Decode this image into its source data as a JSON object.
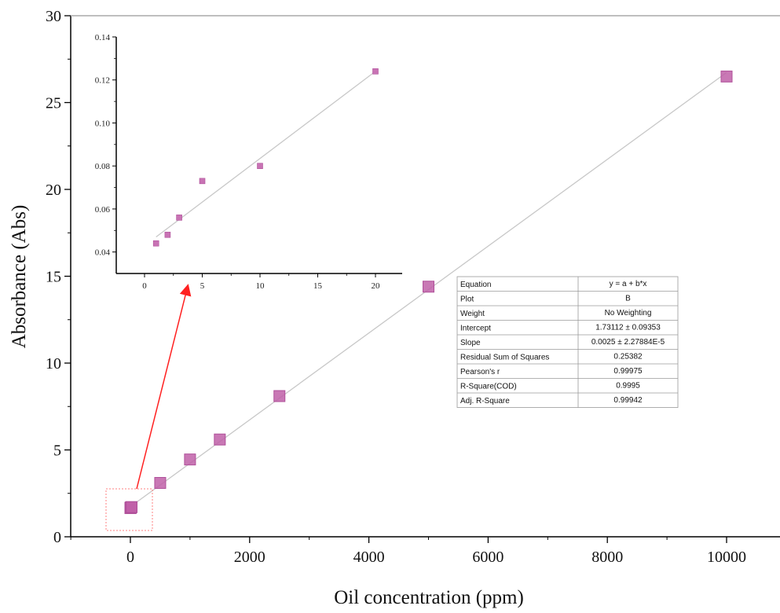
{
  "chart_data": [
    {
      "type": "scatter",
      "xlabel": "Oil concentration (ppm)",
      "ylabel": "Absorbance (Abs)",
      "xlim": [
        -1000,
        11000
      ],
      "ylim": [
        0,
        30
      ],
      "xticks": [
        0,
        2000,
        4000,
        6000,
        8000,
        10000
      ],
      "yticks": [
        0,
        5,
        10,
        15,
        20,
        25,
        30
      ],
      "series": [
        {
          "x": [
            1,
            2,
            3,
            5,
            10,
            20,
            500,
            1000,
            1500,
            2500,
            5000,
            10000
          ],
          "y": [
            1.65,
            1.66,
            1.67,
            1.68,
            1.69,
            1.71,
            3.1,
            4.45,
            5.6,
            8.1,
            14.4,
            26.5
          ]
        }
      ],
      "fit_line": {
        "x": [
          0,
          10000
        ],
        "y": [
          1.73112,
          26.73112
        ]
      },
      "fit_table": [
        [
          "Equation",
          "y = a + b*x"
        ],
        [
          "Plot",
          "B"
        ],
        [
          "Weight",
          "No Weighting"
        ],
        [
          "Intercept",
          "1.73112 ± 0.09353"
        ],
        [
          "Slope",
          "0.0025 ± 2.27884E-5"
        ],
        [
          "Residual Sum of Squares",
          "0.25382"
        ],
        [
          "Pearson's r",
          "0.99975"
        ],
        [
          "R-Square(COD)",
          "0.9995"
        ],
        [
          "Adj. R-Square",
          "0.99942"
        ]
      ],
      "colors": {
        "marker": "#c060a8",
        "fit_line": "#c8c8c8",
        "arrow": "#ff2020",
        "highlight_box": "#ff8080"
      }
    },
    {
      "type": "scatter",
      "role": "inset",
      "xlim": [
        -2.5,
        22.5
      ],
      "ylim": [
        0.03,
        0.14
      ],
      "xticks": [
        0,
        5,
        10,
        15,
        20
      ],
      "yticks": [
        0.04,
        0.06,
        0.08,
        0.1,
        0.12,
        0.14
      ],
      "ytick_labels": [
        "0.04",
        "0.06",
        "0.08",
        "0.10",
        "0.12",
        "0.14"
      ],
      "series": [
        {
          "x": [
            1,
            2,
            3,
            5,
            10,
            20
          ],
          "y": [
            0.044,
            0.048,
            0.056,
            0.073,
            0.08,
            0.124
          ]
        }
      ],
      "fit_line": {
        "x": [
          1,
          20
        ],
        "y": [
          0.047,
          0.124
        ]
      }
    }
  ]
}
